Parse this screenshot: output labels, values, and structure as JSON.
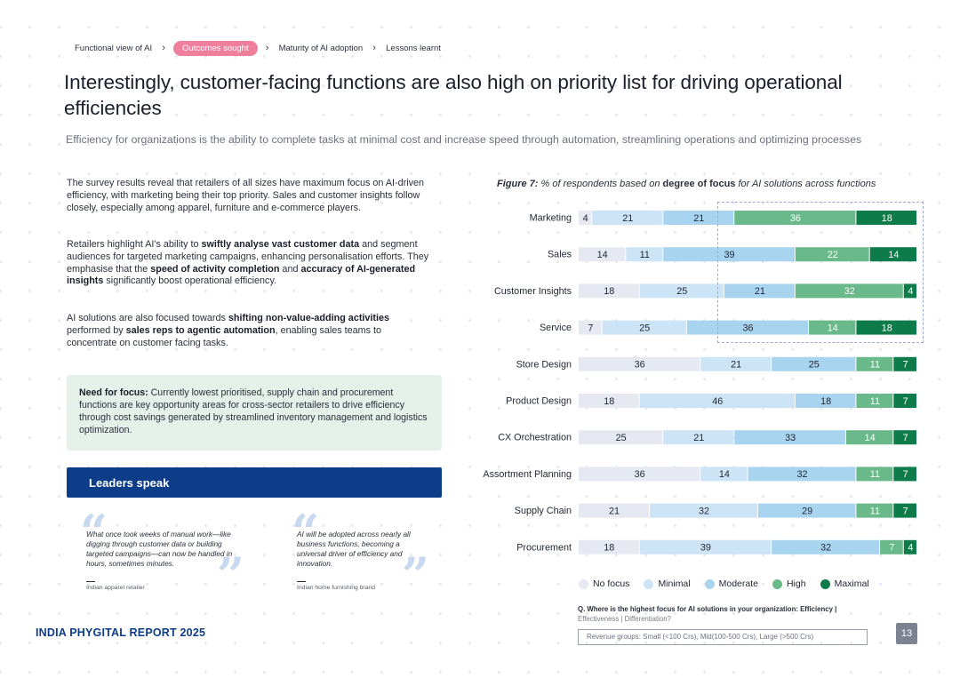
{
  "breadcrumb": {
    "items": [
      "Functional view of AI",
      "Outcomes sought",
      "Maturity of AI adoption",
      "Lessons learnt"
    ],
    "separator": "›"
  },
  "title": "Interestingly, customer-facing functions are also high on priority list for driving operational efficiencies",
  "subtitle": "Efficiency for organizations is the ability to complete tasks at minimal cost and increase speed through automation, streamlining operations and optimizing processes",
  "paragraphs": {
    "p1": "The survey results reveal that retailers of all sizes have maximum focus on AI-driven efficiency, with marketing being their top priority. Sales and customer insights follow closely, especially among apparel, furniture and e-commerce players.",
    "p2_a": "Retailers highlight AI's ability to ",
    "p2_b": "swiftly analyse vast customer data",
    "p2_c": " and segment audiences for targeted marketing campaigns, enhancing personalisation efforts. They emphasise that the ",
    "p2_d": "speed of activity completion",
    "p2_e": " and ",
    "p2_f": "accuracy of AI-generated insights",
    "p2_g": " significantly boost operational efficiency.",
    "p3_a": "AI solutions are also focused towards ",
    "p3_b": "shifting non-value-adding activities",
    "p3_c": " performed by ",
    "p3_d": "sales reps to agentic automation",
    "p3_e": ", enabling sales teams to concentrate on customer facing tasks."
  },
  "focus_box": {
    "label": "Need for focus:",
    "text": " Currently lowest prioritised, supply chain and procurement functions are key opportunity areas for cross-sector retailers to drive efficiency through cost savings generated by streamlined inventory management and logistics optimization."
  },
  "leaders": {
    "heading": "Leaders speak",
    "quotes": [
      {
        "text": "What once took weeks of manual work—like digging through customer data or building targeted campaigns—can now be handled in hours, sometimes minutes.",
        "source": "Indian apparel retailer"
      },
      {
        "text": "AI will be adopted across nearly all business functions, becoming a universal driver of efficiency and innovation.",
        "source": "Indian home furnishing brand"
      }
    ],
    "open_mark": "“",
    "close_mark": "”"
  },
  "figure": {
    "label": "Figure 7:",
    "caption_a": " % of respondents based on ",
    "caption_b": "degree of focus",
    "caption_c": " for AI solutions across functions"
  },
  "chart_data": {
    "type": "bar",
    "orientation": "horizontal",
    "stacked": true,
    "categories": [
      "Marketing",
      "Sales",
      "Customer Insights",
      "Service",
      "Store Design",
      "Product Design",
      "CX Orchestration",
      "Assortment Planning",
      "Supply Chain",
      "Procurement"
    ],
    "series": [
      {
        "name": "No focus",
        "color": "#e6e9f1",
        "values": [
          4,
          14,
          18,
          7,
          36,
          18,
          25,
          36,
          21,
          18
        ]
      },
      {
        "name": "Minimal",
        "color": "#cde3f6",
        "values": [
          21,
          11,
          25,
          25,
          21,
          46,
          21,
          14,
          32,
          39
        ]
      },
      {
        "name": "Moderate",
        "color": "#a9d4f0",
        "values": [
          21,
          39,
          21,
          36,
          25,
          18,
          33,
          32,
          29,
          32
        ]
      },
      {
        "name": "High",
        "color": "#6ab98a",
        "values": [
          36,
          22,
          32,
          14,
          11,
          11,
          14,
          11,
          11,
          7
        ]
      },
      {
        "name": "Maximal",
        "color": "#0e7c4a",
        "values": [
          18,
          14,
          4,
          18,
          7,
          7,
          7,
          7,
          7,
          4
        ]
      }
    ],
    "legend_position": "bottom",
    "xlim": [
      0,
      100
    ],
    "grid": false
  },
  "question": {
    "q1": "Q. Where is the highest focus for AI solutions in your organization: Efficiency | ",
    "q2": "Effectiveness | Differentiation?"
  },
  "revenue_groups": "Revenue groups: Small (<100 Crs), Mid(100-500 Crs), Large (>500 Crs)",
  "footer": {
    "report": "INDIA PHYGITAL REPORT 2025",
    "page": "13"
  }
}
